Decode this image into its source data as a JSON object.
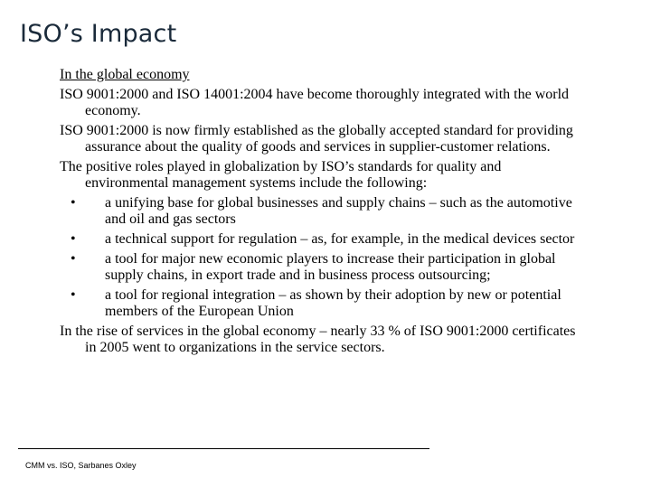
{
  "slide": {
    "title": "ISO’s Impact",
    "heading": "In the global economy",
    "paragraphs": [
      "ISO 9001:2000 and ISO 14001:2004 have become thoroughly integrated with the world economy.",
      "ISO 9001:2000 is now firmly established as the globally accepted standard for providing assurance about the quality of goods and services in supplier-customer relations.",
      "The positive roles played in globalization by ISO’s standards for quality and environmental management systems include the following:"
    ],
    "bullet_marker": "•",
    "bullets": [
      "a unifying base for global businesses and supply chains – such as the automotive and oil and gas sectors",
      "a technical support for regulation – as, for example, in the medical devices sector",
      "a tool for major new economic players to increase their participation in global supply chains, in export trade and in business process outsourcing;",
      "a tool for regional integration – as shown by their adoption by new or potential members of the European Union"
    ],
    "closing": "In the rise of services in the global economy – nearly 33 % of ISO 9001:2000 certificates in 2005 went to organizations in the service sectors."
  },
  "footer": {
    "text": "CMM vs. ISO, Sarbanes Oxley"
  }
}
